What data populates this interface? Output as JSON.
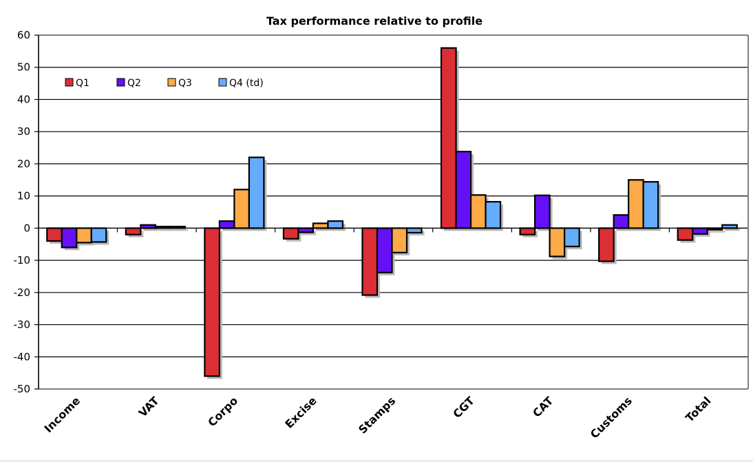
{
  "chart_data": {
    "type": "bar",
    "title": "Tax performance relative to profile",
    "xlabel": "",
    "ylabel": "",
    "ylim": [
      -50,
      60
    ],
    "yticks": [
      60,
      50,
      40,
      30,
      20,
      10,
      0,
      -10,
      -20,
      -30,
      -40,
      -50
    ],
    "grid": true,
    "legend_position": "top-left",
    "categories": [
      "Income",
      "VAT",
      "Corpo",
      "Excise",
      "Stamps",
      "CGT",
      "CAT",
      "Customs",
      "Total"
    ],
    "series": [
      {
        "name": "Q1",
        "color": "#dc2f35",
        "values": [
          -4.0,
          -2.0,
          -46.0,
          -3.3,
          -20.8,
          56.0,
          -2.0,
          -10.3,
          -3.7
        ]
      },
      {
        "name": "Q2",
        "color": "#6610f8",
        "values": [
          -6.0,
          1.0,
          2.2,
          -1.3,
          -13.8,
          23.8,
          10.2,
          4.1,
          -1.8
        ]
      },
      {
        "name": "Q3",
        "color": "#fdaa48",
        "values": [
          -4.5,
          0.5,
          12.0,
          1.5,
          -7.6,
          10.3,
          -8.8,
          15.0,
          -0.5
        ]
      },
      {
        "name": "Q4 (td)",
        "color": "#65abfe",
        "values": [
          -4.3,
          0.5,
          22.0,
          2.2,
          -1.4,
          8.2,
          -5.7,
          14.4,
          1.0
        ]
      }
    ]
  }
}
